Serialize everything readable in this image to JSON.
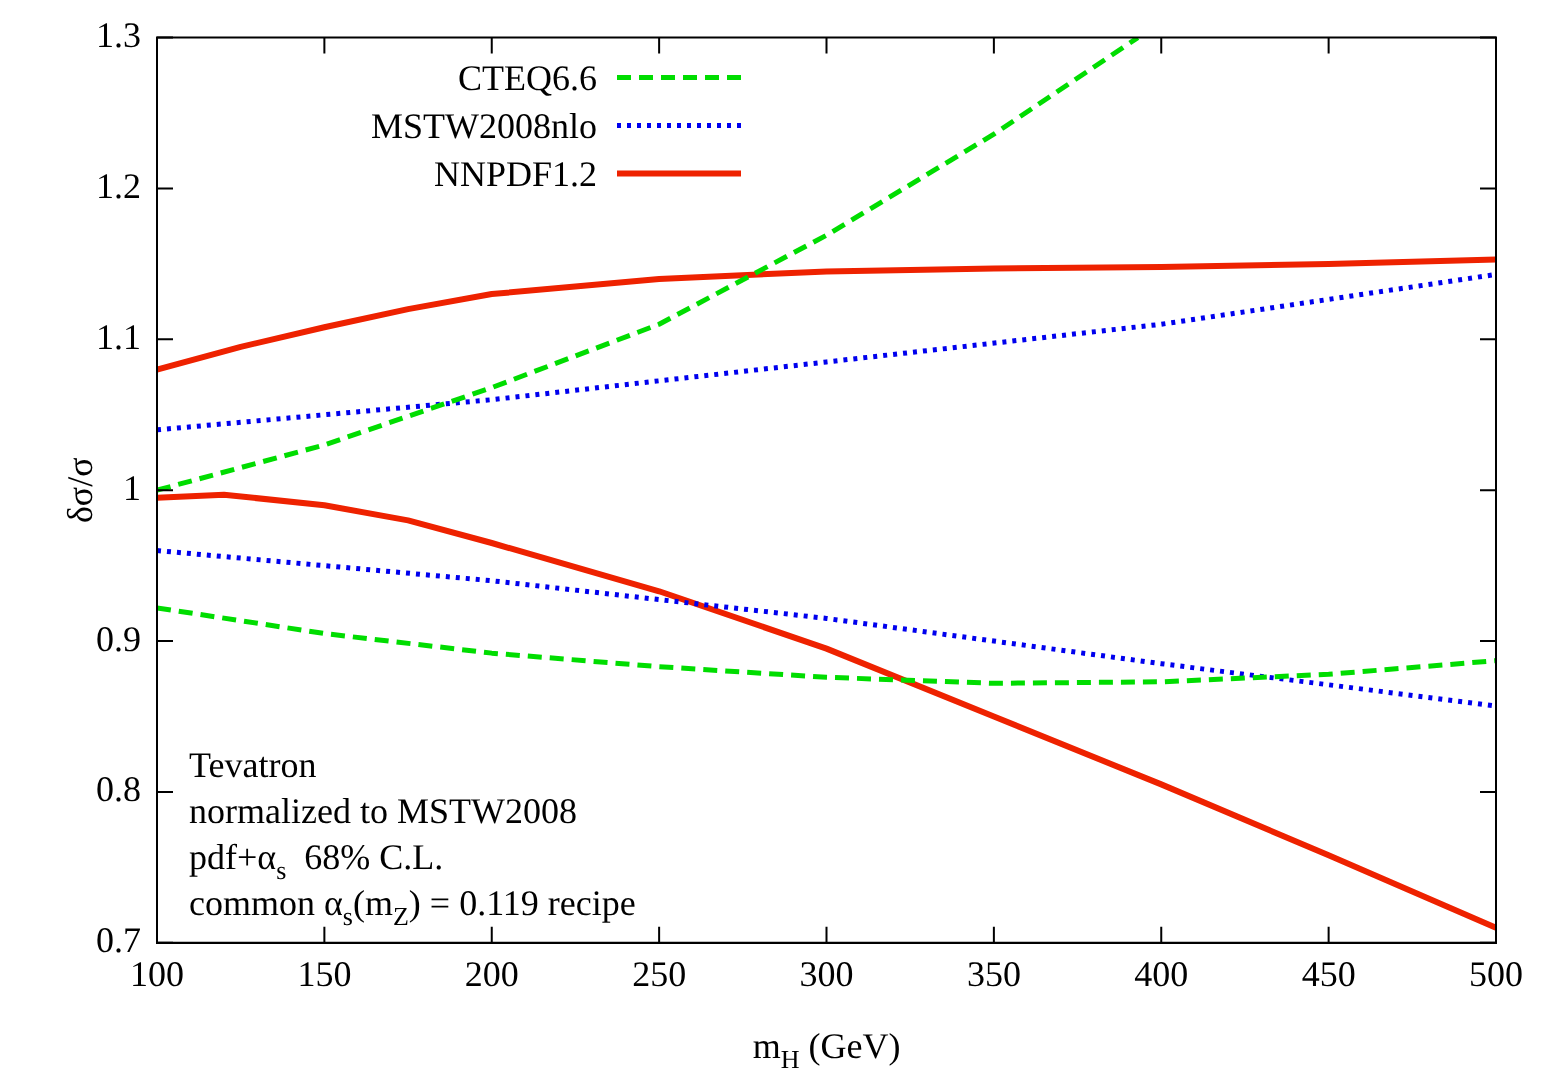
{
  "chart_data": {
    "type": "line",
    "xlabel": "m$_{H}$ (GeV)",
    "ylabel": "δσ/σ",
    "xlim": [
      100,
      500
    ],
    "xticks": [
      100,
      150,
      200,
      250,
      300,
      350,
      400,
      450,
      500
    ],
    "ylim": [
      0.7,
      1.3
    ],
    "yticks": [
      0.7,
      0.8,
      0.9,
      1,
      1.1,
      1.2,
      1.3
    ],
    "grid": false,
    "legend": "top left",
    "marker": "none",
    "series": [
      {
        "name": "CTEQ6.6",
        "color": "#00dd00",
        "line_style": "dashed",
        "x": [
          100,
          150,
          200,
          250,
          300,
          350,
          393
        ],
        "values": [
          1.0,
          1.03,
          1.068,
          1.11,
          1.169,
          1.236,
          1.3
        ]
      },
      {
        "color": "#00dd00",
        "line_style": "dashed",
        "x": [
          100,
          150,
          200,
          250,
          300,
          350,
          400,
          450,
          500
        ],
        "values": [
          0.922,
          0.905,
          0.892,
          0.883,
          0.876,
          0.872,
          0.873,
          0.878,
          0.887
        ]
      },
      {
        "name": "MSTW2008nlo",
        "color": "#0000ee",
        "line_style": "dotted",
        "x": [
          100,
          200,
          300,
          400,
          500
        ],
        "values": [
          1.04,
          1.06,
          1.085,
          1.11,
          1.143
        ]
      },
      {
        "color": "#0000ee",
        "line_style": "dotted",
        "x": [
          100,
          200,
          300,
          400,
          500
        ],
        "values": [
          0.96,
          0.94,
          0.915,
          0.885,
          0.857
        ]
      },
      {
        "name": "NNPDF1.2",
        "color": "#ee2200",
        "line_style": "solid",
        "x": [
          100,
          125,
          150,
          175,
          200,
          250,
          300,
          350,
          400,
          450,
          500
        ],
        "values": [
          1.08,
          1.095,
          1.108,
          1.12,
          1.13,
          1.14,
          1.145,
          1.147,
          1.148,
          1.15,
          1.153
        ]
      },
      {
        "color": "#ee2200",
        "line_style": "solid",
        "x": [
          100,
          120,
          150,
          175,
          200,
          250,
          300,
          350,
          400,
          450,
          500
        ],
        "values": [
          0.995,
          0.997,
          0.99,
          0.98,
          0.965,
          0.933,
          0.895,
          0.85,
          0.805,
          0.758,
          0.71
        ]
      }
    ],
    "annotations": [
      "Tevatron",
      "normalized to MSTW2008",
      "pdf+α$_{s}$  68% C.L.",
      "common α$_{s}$(m$_{Z}$) = 0.119 recipe"
    ]
  }
}
